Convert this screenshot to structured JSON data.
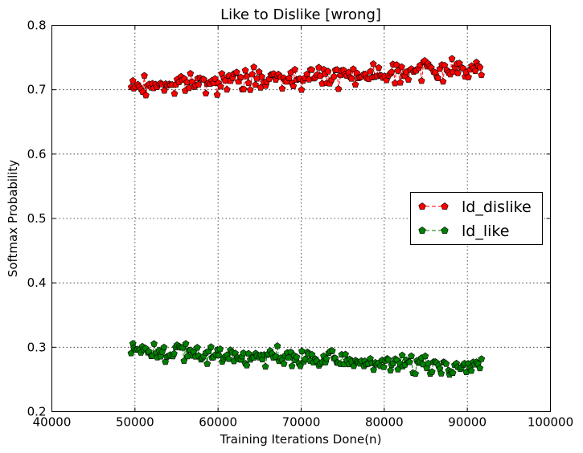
{
  "chart_data": {
    "type": "line",
    "title": "Like to Dislike [wrong]",
    "xlabel": "Training Iterations Done(n)",
    "ylabel": "Softmax Probability",
    "xlim": [
      40000,
      100000
    ],
    "ylim": [
      0.2,
      0.8
    ],
    "xticks": [
      "40000",
      "50000",
      "60000",
      "70000",
      "80000",
      "90000",
      "100000"
    ],
    "yticks": [
      "0.2",
      "0.3",
      "0.4",
      "0.5",
      "0.6",
      "0.7",
      "0.8"
    ],
    "grid": true,
    "legend_position": "center-right",
    "marker": "pentagon",
    "series": [
      {
        "name": "ld_dislike",
        "color": "#ff0000",
        "x_start": 49500,
        "x_end": 91800,
        "x_step": 200,
        "y_start": 0.705,
        "y_end": 0.735,
        "noise": 0.011
      },
      {
        "name": "ld_like",
        "color": "#008000",
        "x_start": 49500,
        "x_end": 91800,
        "x_step": 200,
        "y_start": 0.295,
        "y_end": 0.268,
        "noise": 0.01
      }
    ]
  }
}
